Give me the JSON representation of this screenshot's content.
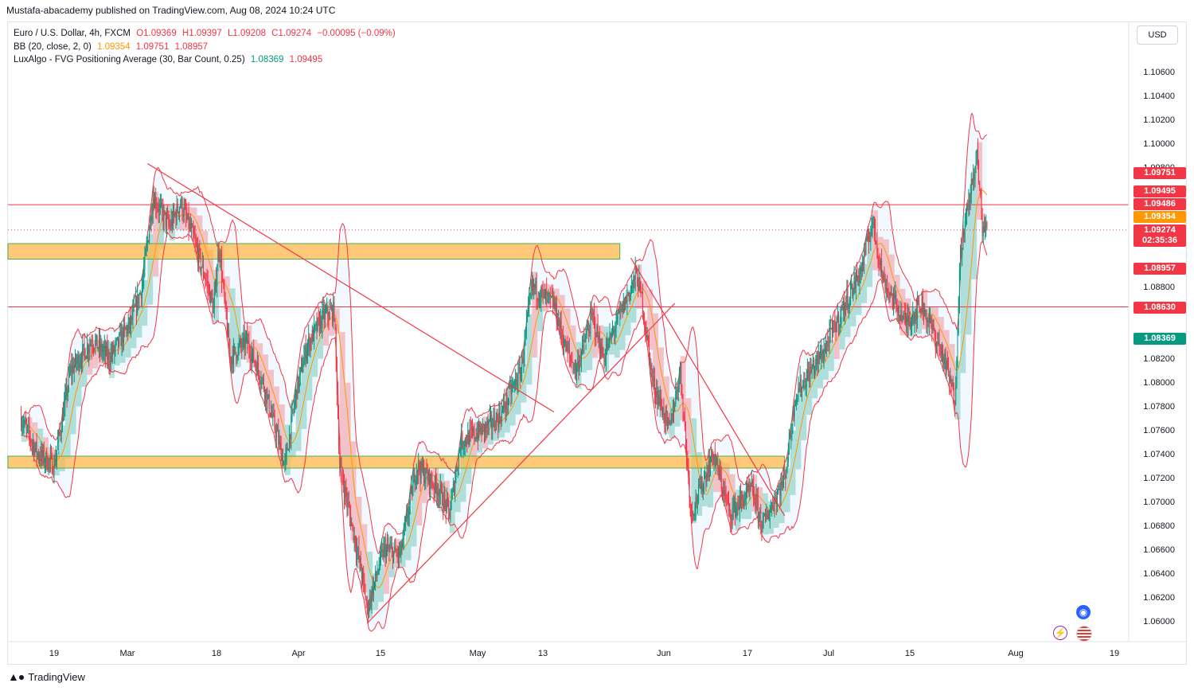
{
  "header": {
    "publisher_line": "Mustafa-abacademy published on TradingView.com, Aug 08, 2024 10:24 UTC"
  },
  "legend": {
    "symbol": "Euro / U.S. Dollar, 4h, FXCM",
    "o": "O1.09369",
    "h": "H1.09397",
    "l": "L1.09208",
    "c": "C1.09274",
    "chg": "−0.00095 (−0.09%)",
    "bb_label": "BB (20, close, 2, 0)",
    "bb_basis": "1.09354",
    "bb_upper": "1.09751",
    "bb_lower": "1.08957",
    "lux_label": "LuxAlgo - FVG Positioning Average (30, Bar Count, 0.25)",
    "lux_1": "1.08369",
    "lux_2": "1.09495"
  },
  "currency_button": "USD",
  "footer": {
    "brand": "TradingView",
    "logo_icon": "tradingview-logo-icon"
  },
  "price_tags": [
    {
      "label": "1.09751",
      "color": "#f23645"
    },
    {
      "label": "1.09495",
      "color": "#f23645"
    },
    {
      "label": "1.09486",
      "color": "#f23645"
    },
    {
      "label": "1.09354",
      "color": "#ff9800"
    },
    {
      "label": "1.09274",
      "color": "#f23645"
    },
    {
      "label": "02:35:36",
      "color": "#f23645"
    },
    {
      "label": "1.08957",
      "color": "#f23645"
    },
    {
      "label": "1.08630",
      "color": "#f23645"
    },
    {
      "label": "1.08369",
      "color": "#089981"
    }
  ],
  "icons": {
    "lightning": "lightning-icon",
    "globe": "globe-icon",
    "flag": "us-flag-icon"
  },
  "chart_data": {
    "type": "candlestick",
    "ylim": [
      1.0595,
      1.108
    ],
    "yticks": [
      "1.10600",
      "1.10400",
      "1.10200",
      "1.10000",
      "1.09800",
      "1.08800",
      "1.08200",
      "1.08000",
      "1.07800",
      "1.07600",
      "1.07400",
      "1.07200",
      "1.07000",
      "1.06800",
      "1.06600",
      "1.06400",
      "1.06200",
      "1.06000"
    ],
    "xticks": [
      "19",
      "Mar",
      "18",
      "Apr",
      "15",
      "May",
      "13",
      "Jun",
      "17",
      "Jul",
      "15",
      "Aug",
      "19"
    ],
    "horizontal_levels": [
      1.09486,
      1.0863
    ],
    "current_price": 1.09274,
    "zones": [
      {
        "from": "Feb 14",
        "to": "Jun 1",
        "low": 1.0903,
        "high": 1.0916
      },
      {
        "from": "Feb 14",
        "to": "Jul 1",
        "low": 1.0728,
        "high": 1.0738
      }
    ],
    "trendlines": [
      {
        "from": [
          "Mar 7",
          1.0983
        ],
        "to": [
          "May 20",
          1.0775
        ]
      },
      {
        "from": [
          "Apr 16",
          1.0598
        ],
        "to": [
          "Jun 11",
          1.0866
        ]
      },
      {
        "from": [
          "Jun 3",
          1.0904
        ],
        "to": [
          "Jul 1",
          1.0688
        ]
      }
    ],
    "path": [
      [
        "Feb 13",
        1.077
      ],
      [
        "Feb 16",
        1.074
      ],
      [
        "Feb 19",
        1.073
      ],
      [
        "Feb 22",
        1.081
      ],
      [
        "Feb 26",
        1.0835
      ],
      [
        "Feb 29",
        1.082
      ],
      [
        "Mar 4",
        1.085
      ],
      [
        "Mar 6",
        1.088
      ],
      [
        "Mar 8",
        1.0955
      ],
      [
        "Mar 11",
        1.093
      ],
      [
        "Mar 13",
        1.095
      ],
      [
        "Mar 15",
        1.0925
      ],
      [
        "Mar 18",
        1.088
      ],
      [
        "Mar 19",
        1.086
      ],
      [
        "Mar 20",
        1.0915
      ],
      [
        "Mar 22",
        1.082
      ],
      [
        "Mar 25",
        1.0835
      ],
      [
        "Mar 28",
        1.08
      ],
      [
        "Apr 1",
        1.073
      ],
      [
        "Apr 3",
        1.079
      ],
      [
        "Apr 5",
        1.083
      ],
      [
        "Apr 8",
        1.0855
      ],
      [
        "Apr 10",
        1.086
      ],
      [
        "Apr 11",
        1.073
      ],
      [
        "Apr 15",
        1.064
      ],
      [
        "Apr 16",
        1.061
      ],
      [
        "Apr 19",
        1.066
      ],
      [
        "Apr 22",
        1.0655
      ],
      [
        "Apr 25",
        1.073
      ],
      [
        "Apr 29",
        1.071
      ],
      [
        "May 1",
        1.069
      ],
      [
        "May 3",
        1.075
      ],
      [
        "May 7",
        1.076
      ],
      [
        "May 10",
        1.077
      ],
      [
        "May 14",
        1.081
      ],
      [
        "May 16",
        1.088
      ],
      [
        "May 20",
        1.0865
      ],
      [
        "May 22",
        1.083
      ],
      [
        "May 24",
        1.081
      ],
      [
        "May 27",
        1.0855
      ],
      [
        "May 29",
        1.082
      ],
      [
        "May 31",
        1.0845
      ],
      [
        "Jun 4",
        1.089
      ],
      [
        "Jun 5",
        1.087
      ],
      [
        "Jun 7",
        1.08
      ],
      [
        "Jun 10",
        1.076
      ],
      [
        "Jun 12",
        1.081
      ],
      [
        "Jun 14",
        1.069
      ],
      [
        "Jun 18",
        1.074
      ],
      [
        "Jun 21",
        1.069
      ],
      [
        "Jun 25",
        1.071
      ],
      [
        "Jun 27",
        1.068
      ],
      [
        "Jul 1",
        1.072
      ],
      [
        "Jul 3",
        1.079
      ],
      [
        "Jul 8",
        1.0825
      ],
      [
        "Jul 11",
        1.0855
      ],
      [
        "Jul 15",
        1.0895
      ],
      [
        "Jul 17",
        1.0935
      ],
      [
        "Jul 19",
        1.0885
      ],
      [
        "Jul 23",
        1.085
      ],
      [
        "Jul 26",
        1.0865
      ],
      [
        "Jul 30",
        1.082
      ],
      [
        "Aug 1",
        1.0785
      ],
      [
        "Aug 2",
        1.091
      ],
      [
        "Aug 5",
        1.099
      ],
      [
        "Aug 6",
        1.093
      ],
      [
        "Aug 7",
        1.0927
      ]
    ]
  }
}
